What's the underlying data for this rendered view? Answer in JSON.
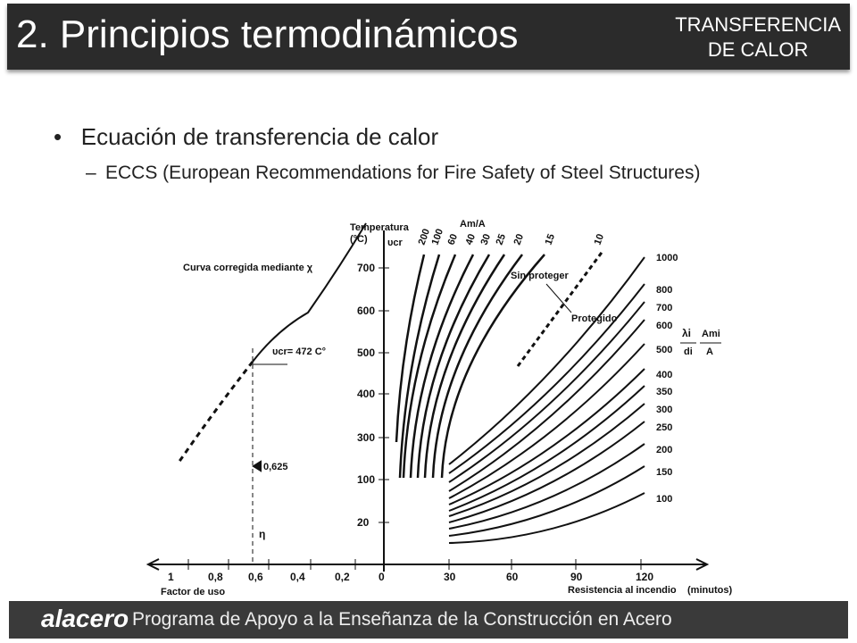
{
  "header": {
    "title": "2. Principios termodinámicos",
    "tag_lines": [
      "TRANSFERENCIA",
      "DE CALOR"
    ]
  },
  "bullets": [
    {
      "text": "Ecuación de transferencia de calor",
      "sub": [
        "ECCS (European Recommendations for Fire Safety of Steel Structures)"
      ]
    }
  ],
  "figure": {
    "left": {
      "curve_label": "Curva corregida mediante χ",
      "critical_label": "υcr= 472 C°",
      "marker": "0,625",
      "eta": "η",
      "x_ticks": [
        "1",
        "0,8",
        "0,6",
        "0,4",
        "0,2"
      ],
      "x_label": "Factor de uso"
    },
    "right": {
      "y_title": [
        "Temperatura",
        "(°C)"
      ],
      "y_symbol": "υcr",
      "y_ticks": [
        "700",
        "600",
        "500",
        "400",
        "300",
        "100",
        "20"
      ],
      "x_ticks": [
        "0",
        "30",
        "60",
        "90",
        "120"
      ],
      "x_label": "Resistencia al incendio",
      "x_unit": "(minutos)",
      "unprotected_title": "Am/A",
      "unprotected_labels": [
        "200",
        "100",
        "60",
        "40",
        "30",
        "25",
        "20",
        "15",
        "10"
      ],
      "sin_proteger": "Sin proteger",
      "protegido": "Protegido",
      "protected_labels": [
        "1000",
        "800",
        "700",
        "600",
        "500",
        "400",
        "350",
        "300",
        "250",
        "200",
        "150",
        "100"
      ],
      "formula": [
        "λi",
        "di",
        "Ami",
        "A"
      ]
    }
  },
  "footer": {
    "logo": "alacero",
    "text": "Programa de Apoyo a la Enseñanza de la Construcción en Acero"
  }
}
